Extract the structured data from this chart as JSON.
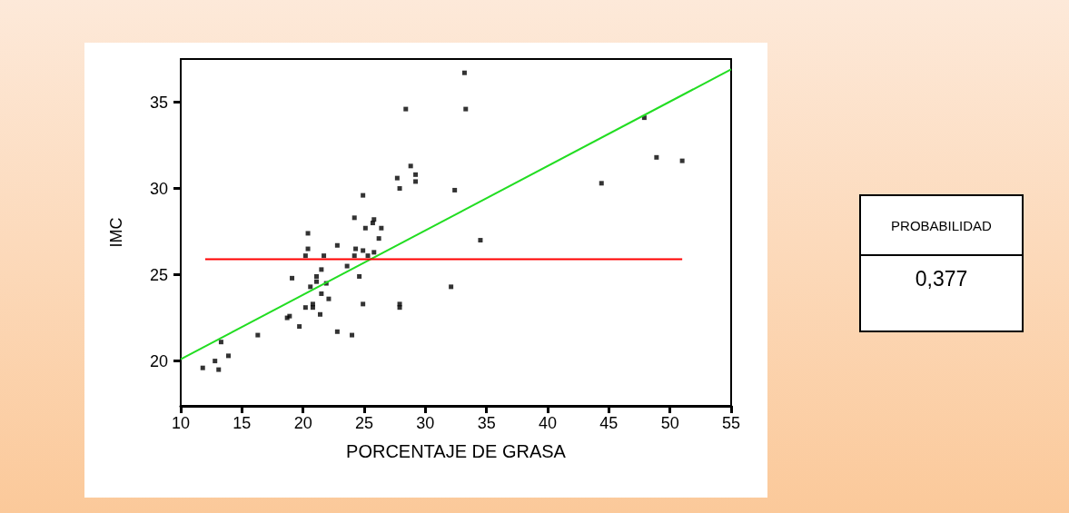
{
  "chart_data": {
    "type": "scatter",
    "xlabel": "PORCENTAJE DE GRASA",
    "ylabel": "IMC",
    "xlim": [
      10,
      55
    ],
    "xticks": [
      10,
      15,
      20,
      25,
      30,
      35,
      40,
      45,
      50,
      55
    ],
    "ylim": [
      17.4,
      37.5
    ],
    "yticks": [
      20,
      25,
      30,
      35
    ],
    "marker": "square",
    "series": [
      {
        "color": "#000000",
        "x": [
          33.2,
          28.4,
          33.3,
          47.9,
          48.9,
          51.0,
          44.4,
          28.8,
          29.2,
          29.2,
          27.7,
          27.9,
          32.4,
          24.9,
          24.2,
          25.8,
          25.7,
          25.1,
          26.4,
          20.4,
          26.2,
          34.5,
          22.8,
          20.4,
          24.3,
          24.9,
          20.2,
          21.7,
          24.2,
          25.8,
          25.3,
          23.6,
          21.5,
          19.1,
          21.1,
          24.6,
          21.1,
          21.9,
          20.6,
          32.1,
          21.5,
          22.1,
          20.2,
          20.8,
          20.8,
          24.9,
          27.9,
          27.9,
          21.4,
          18.9,
          18.7,
          19.7,
          22.8,
          24.0,
          16.3,
          13.3,
          13.9,
          12.8,
          11.8,
          13.1
        ],
        "values": [
          36.7,
          34.6,
          34.6,
          34.1,
          31.8,
          31.6,
          30.3,
          31.3,
          30.8,
          30.4,
          30.6,
          30.0,
          29.9,
          29.6,
          28.3,
          28.2,
          28.0,
          27.7,
          27.7,
          27.4,
          27.1,
          27.0,
          26.7,
          26.5,
          26.5,
          26.4,
          26.1,
          26.1,
          26.1,
          26.3,
          26.1,
          25.5,
          25.3,
          24.8,
          24.9,
          24.9,
          24.6,
          24.5,
          24.3,
          24.3,
          23.9,
          23.6,
          23.1,
          23.3,
          23.1,
          23.3,
          23.3,
          23.1,
          22.7,
          22.6,
          22.5,
          22.0,
          21.7,
          21.5,
          21.5,
          21.1,
          20.3,
          20.0,
          19.6,
          19.5
        ]
      },
      {
        "type": "line",
        "marker": "none",
        "color": "#22dd22",
        "x": [
          10,
          55
        ],
        "values": [
          20.1,
          36.9
        ]
      },
      {
        "type": "line",
        "marker": "none",
        "color": "#ff0000",
        "x": [
          12,
          51
        ],
        "values": [
          25.9,
          25.9
        ]
      }
    ],
    "annotations": [
      "PROBABILIDAD",
      "0,377"
    ]
  }
}
